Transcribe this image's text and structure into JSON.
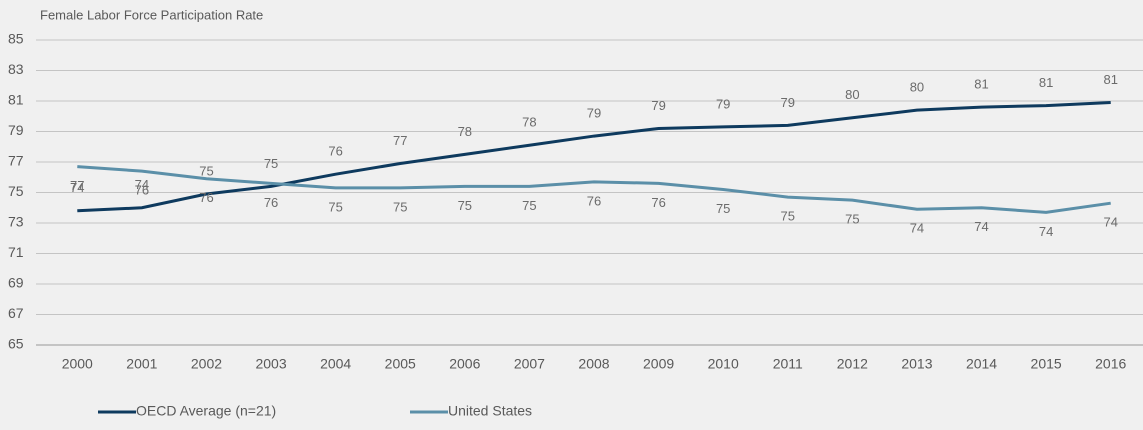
{
  "chart_data": {
    "type": "line",
    "title": "Female Labor Force Participation Rate",
    "categories": [
      "2000",
      "2001",
      "2002",
      "2003",
      "2004",
      "2005",
      "2006",
      "2007",
      "2008",
      "2009",
      "2010",
      "2011",
      "2012",
      "2013",
      "2014",
      "2015",
      "2016"
    ],
    "series": [
      {
        "name": "OECD Average (n=21)",
        "color": "#0e3a5e",
        "values": [
          73.8,
          74.0,
          74.9,
          75.4,
          76.2,
          76.9,
          77.5,
          78.1,
          78.7,
          79.2,
          79.3,
          79.4,
          79.9,
          80.4,
          80.6,
          80.7,
          80.9
        ],
        "value_labels": [
          "74",
          "74",
          "75",
          "75",
          "76",
          "77",
          "78",
          "78",
          "79",
          "79",
          "79",
          "79",
          "80",
          "80",
          "81",
          "81",
          "81"
        ]
      },
      {
        "name": "United States",
        "color": "#5b8fa8",
        "values": [
          76.7,
          76.4,
          75.9,
          75.6,
          75.3,
          75.3,
          75.4,
          75.4,
          75.7,
          75.6,
          75.2,
          74.7,
          74.5,
          73.9,
          74.0,
          73.7,
          74.3
        ],
        "value_labels": [
          "77",
          "76",
          "76",
          "76",
          "75",
          "75",
          "75",
          "75",
          "76",
          "76",
          "75",
          "75",
          "75",
          "74",
          "74",
          "74",
          "74"
        ]
      }
    ],
    "ylim": [
      65,
      85
    ],
    "yticks": [
      65,
      67,
      69,
      71,
      73,
      75,
      77,
      79,
      81,
      83,
      85
    ],
    "grid": true
  }
}
